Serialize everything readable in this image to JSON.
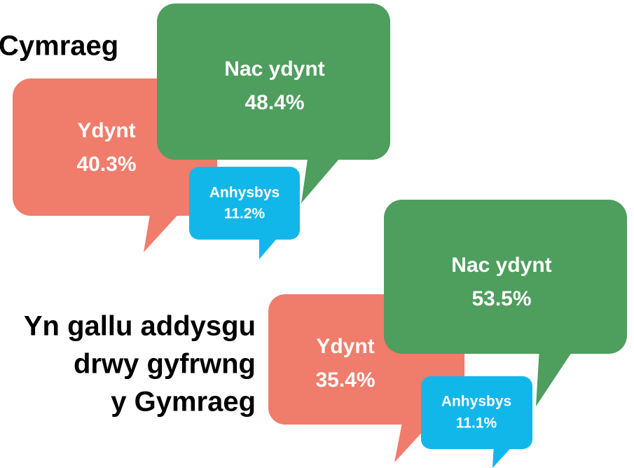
{
  "groups": [
    {
      "title": [
        "Cymraeg"
      ],
      "items": [
        {
          "label": "Ydynt",
          "value": "40.3%"
        },
        {
          "label": "Nac ydynt",
          "value": "48.4%"
        },
        {
          "label": "Anhysbys",
          "value": "11.2%"
        }
      ]
    },
    {
      "title": [
        "Yn gallu addysgu",
        "drwy gyfrwng",
        "y Gymraeg"
      ],
      "items": [
        {
          "label": "Ydynt",
          "value": "35.4%"
        },
        {
          "label": "Nac ydynt",
          "value": "53.5%"
        },
        {
          "label": "Anhysbys",
          "value": "11.1%"
        }
      ]
    }
  ]
}
